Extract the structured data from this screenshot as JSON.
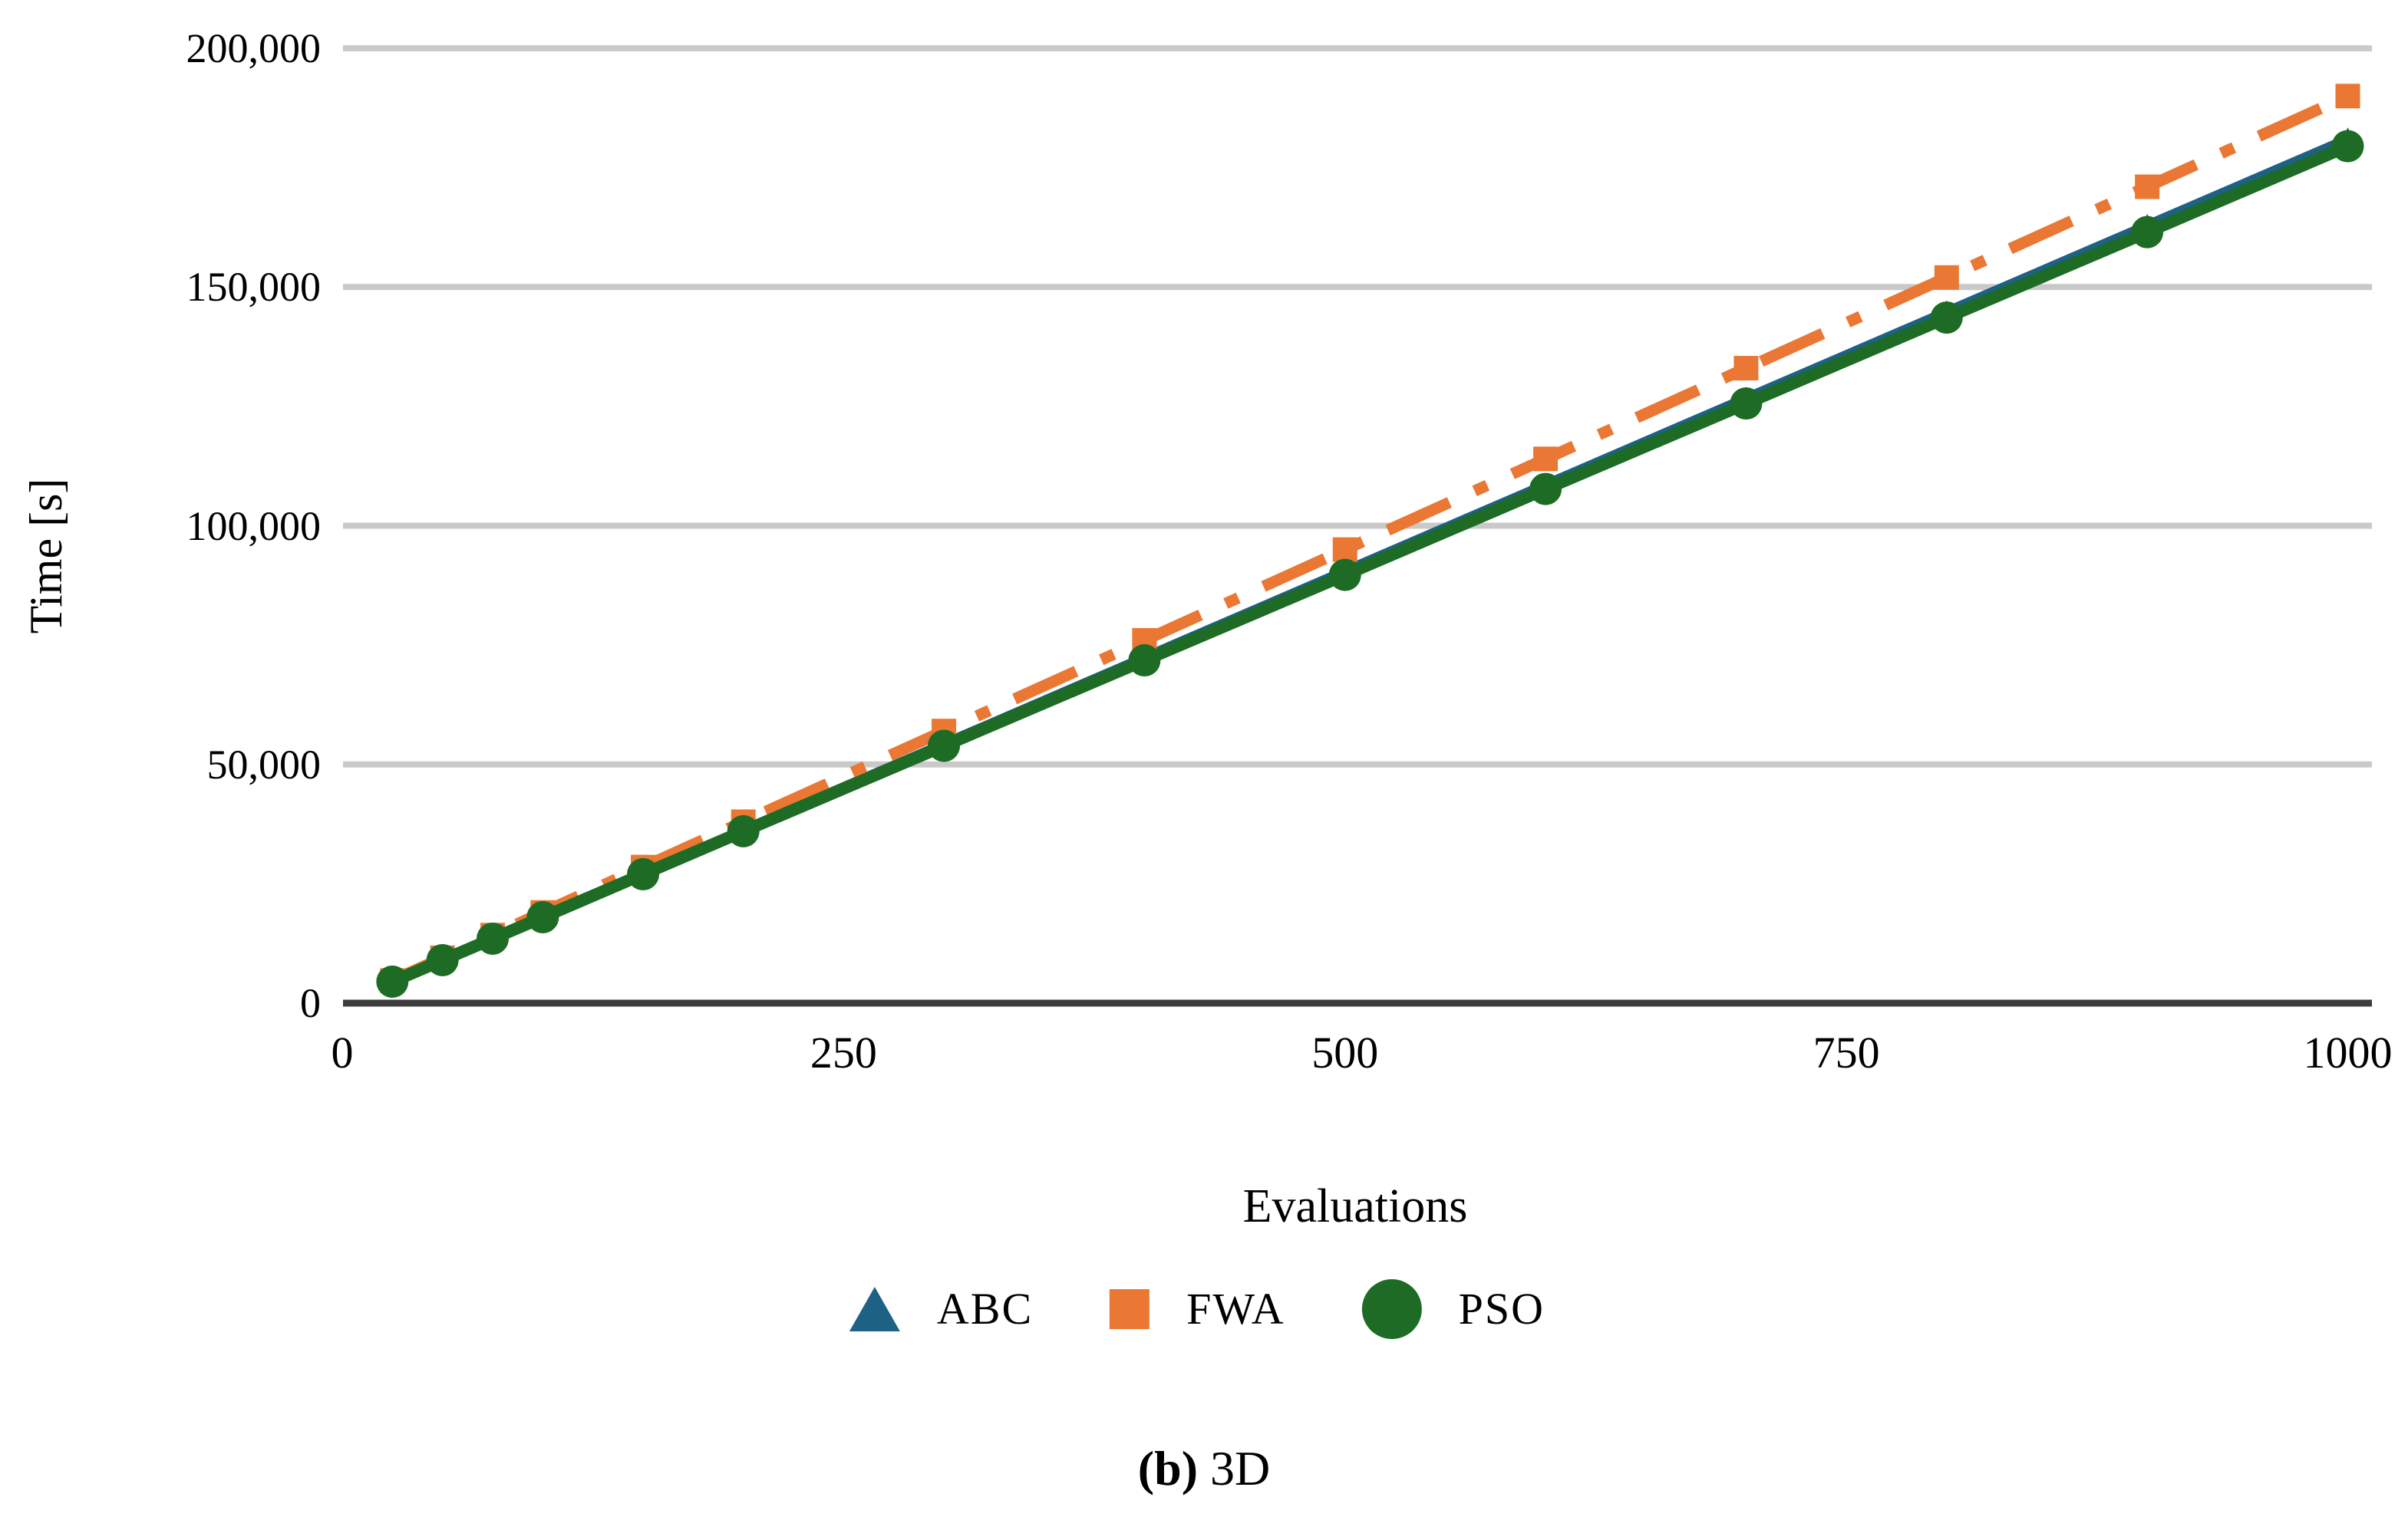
{
  "colors": {
    "abc_blue": "#1d6185",
    "fwa_orange": "#ea7733",
    "pso_green": "#1d6b24",
    "gridline_gray": "#c9c9c9",
    "axis_dark": "#3c3c3c",
    "text_black": "#000000"
  },
  "caption": {
    "prefix": "(b)",
    "label": "3D"
  },
  "chart_data": {
    "type": "line",
    "title": "",
    "xlabel": "Evaluations",
    "ylabel": "Time [s]",
    "x": [
      25,
      50,
      75,
      100,
      150,
      200,
      300,
      400,
      500,
      600,
      700,
      800,
      900,
      1000
    ],
    "series": [
      {
        "name": "ABC",
        "color": "#1d6185",
        "marker": "triangle",
        "line_style": "solid",
        "values": [
          4500,
          9050,
          13600,
          18100,
          27150,
          36200,
          54300,
          72400,
          90500,
          108600,
          126700,
          144800,
          162900,
          181000
        ]
      },
      {
        "name": "FWA",
        "color": "#ea7733",
        "marker": "square",
        "line_style": "dashdot",
        "values": [
          4750,
          9500,
          14250,
          19000,
          28500,
          38000,
          57000,
          76000,
          95000,
          114000,
          133000,
          152000,
          171000,
          190000
        ]
      },
      {
        "name": "PSO",
        "color": "#1d6b24",
        "marker": "circle",
        "line_style": "solid",
        "values": [
          4500,
          9000,
          13500,
          18000,
          27000,
          36000,
          53900,
          71800,
          89700,
          107700,
          125600,
          143600,
          161500,
          179500
        ]
      }
    ],
    "xticks": [
      {
        "value": 0,
        "label": "0"
      },
      {
        "value": 250,
        "label": "250"
      },
      {
        "value": 500,
        "label": "500"
      },
      {
        "value": 750,
        "label": "750"
      },
      {
        "value": 1000,
        "label": "1000"
      }
    ],
    "yticks": [
      {
        "value": 0,
        "label": "0"
      },
      {
        "value": 50000,
        "label": "50,000"
      },
      {
        "value": 100000,
        "label": "100,000"
      },
      {
        "value": 150000,
        "label": "150,000"
      },
      {
        "value": 200000,
        "label": "200,000"
      }
    ],
    "xlim": [
      0,
      1030
    ],
    "ylim": [
      0,
      200000
    ],
    "grid": "horizontal",
    "legend_position": "bottom"
  }
}
